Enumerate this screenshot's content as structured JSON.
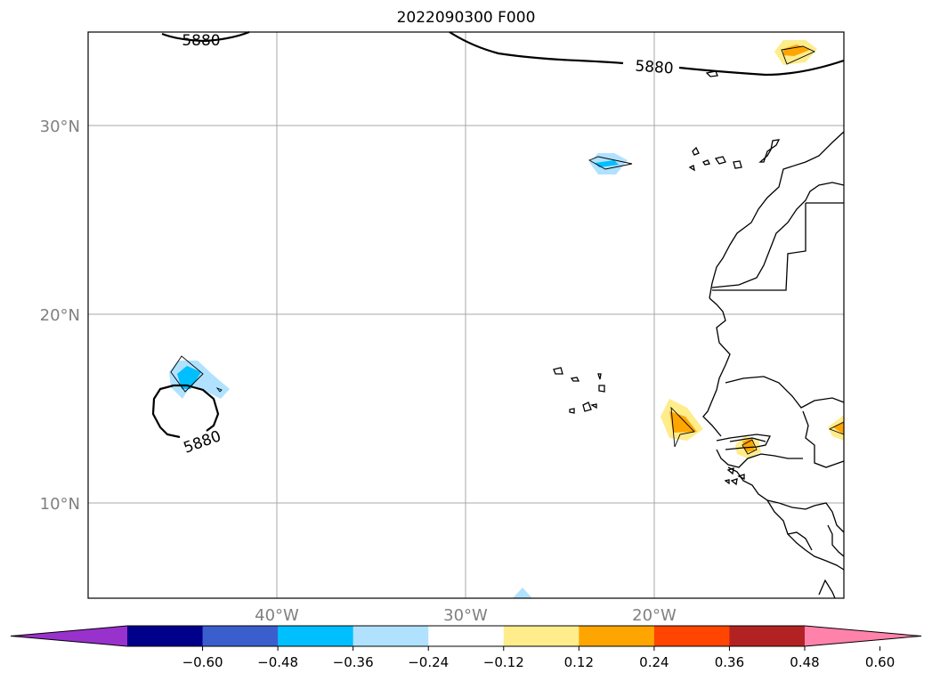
{
  "map": {
    "title": "2022090300 F000",
    "lat_ticks": [
      {
        "label": "30°N",
        "value": 30
      },
      {
        "label": "20°N",
        "value": 20
      },
      {
        "label": "10°N",
        "value": 10
      }
    ],
    "lon_ticks": [
      {
        "label": "40°W",
        "value": -40
      },
      {
        "label": "30°W",
        "value": -30
      },
      {
        "label": "20°W",
        "value": -20
      }
    ],
    "contour_labels": [
      "5880",
      "5880",
      "5880"
    ],
    "extent": {
      "lon_min": -50,
      "lon_max": -10,
      "lat_min": 5,
      "lat_max": 35
    },
    "gridlines": true
  },
  "colorbar": {
    "tick_labels": [
      "−0.60",
      "−0.48",
      "−0.36",
      "−0.24",
      "−0.12",
      "0.12",
      "0.24",
      "0.36",
      "0.48",
      "0.60"
    ],
    "colors": [
      "#9932cc",
      "#00008b",
      "#3a5fcd",
      "#00bfff",
      "#b0e2ff",
      "#ffffff",
      "#ffec8b",
      "#ffa500",
      "#ff4500",
      "#b22222",
      "#ff82ab"
    ],
    "extend": "both"
  }
}
